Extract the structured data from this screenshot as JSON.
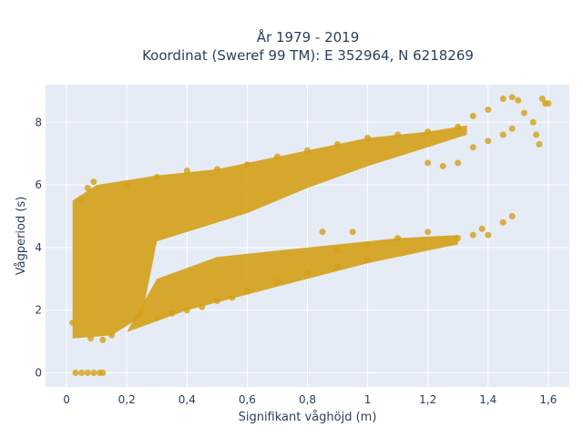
{
  "chart_data": {
    "type": "scatter",
    "title_lines": [
      "År 1979 - 2019",
      "Koordinat (Sweref 99 TM): E 352964, N 6218269"
    ],
    "xlabel": "Signifikant våghöjd (m)",
    "ylabel": "Vågperiod (s)",
    "xlim": [
      -0.07,
      1.67
    ],
    "ylim": [
      -0.45,
      9.2
    ],
    "x_ticks": [
      0,
      0.2,
      0.4,
      0.6,
      0.8,
      1,
      1.2,
      1.4,
      1.6
    ],
    "x_tick_labels": [
      "0",
      "0,2",
      "0,4",
      "0,6",
      "0,8",
      "1",
      "1,2",
      "1,4",
      "1,6"
    ],
    "y_ticks": [
      0,
      2,
      4,
      6,
      8
    ],
    "y_tick_labels": [
      "0",
      "2",
      "4",
      "6",
      "8"
    ],
    "grid": true,
    "legend": "none",
    "colors": {
      "marker": "#d4a017",
      "plot_bg": "#e5ecf6",
      "grid": "#ffffff"
    },
    "series": [
      {
        "points": [
          [
            0.02,
            1.6
          ],
          [
            0.03,
            0.0
          ],
          [
            0.05,
            0.0
          ],
          [
            0.07,
            0.0
          ],
          [
            0.09,
            0.0
          ],
          [
            0.11,
            0.0
          ],
          [
            0.12,
            0.0
          ],
          [
            0.05,
            5.5
          ],
          [
            0.07,
            5.9
          ],
          [
            0.09,
            6.1
          ],
          [
            0.08,
            1.1
          ],
          [
            0.12,
            1.05
          ],
          [
            0.15,
            1.2
          ],
          [
            0.2,
            6.0
          ],
          [
            0.3,
            6.25
          ],
          [
            0.4,
            6.45
          ],
          [
            0.5,
            6.5
          ],
          [
            0.6,
            6.65
          ],
          [
            0.7,
            6.9
          ],
          [
            0.8,
            7.1
          ],
          [
            0.9,
            7.3
          ],
          [
            1.0,
            7.5
          ],
          [
            1.1,
            7.6
          ],
          [
            1.2,
            7.7
          ],
          [
            1.3,
            7.85
          ],
          [
            1.35,
            8.2
          ],
          [
            1.4,
            8.4
          ],
          [
            1.45,
            8.75
          ],
          [
            1.48,
            8.8
          ],
          [
            1.5,
            8.7
          ],
          [
            1.58,
            8.75
          ],
          [
            1.59,
            8.6
          ],
          [
            1.52,
            8.3
          ],
          [
            1.55,
            8.0
          ],
          [
            1.45,
            7.6
          ],
          [
            1.4,
            7.4
          ],
          [
            1.35,
            7.2
          ],
          [
            1.3,
            6.7
          ],
          [
            1.25,
            6.6
          ],
          [
            1.2,
            6.7
          ],
          [
            1.57,
            7.3
          ],
          [
            1.56,
            7.6
          ],
          [
            1.48,
            7.8
          ],
          [
            1.6,
            8.6
          ],
          [
            1.35,
            4.4
          ],
          [
            1.4,
            4.4
          ],
          [
            1.45,
            4.8
          ],
          [
            1.48,
            5.0
          ],
          [
            1.38,
            4.6
          ],
          [
            1.3,
            4.3
          ],
          [
            1.2,
            4.5
          ],
          [
            1.1,
            4.3
          ],
          [
            1.0,
            4.1
          ],
          [
            0.95,
            4.5
          ],
          [
            0.9,
            3.9
          ],
          [
            0.85,
            4.5
          ],
          [
            0.3,
            1.75
          ],
          [
            0.4,
            2.0
          ],
          [
            0.5,
            2.3
          ],
          [
            0.6,
            2.6
          ],
          [
            0.7,
            2.9
          ],
          [
            0.8,
            3.2
          ],
          [
            0.9,
            3.4
          ],
          [
            1.0,
            3.6
          ],
          [
            0.35,
            1.9
          ],
          [
            0.45,
            2.1
          ],
          [
            0.55,
            2.4
          ]
        ]
      }
    ]
  }
}
